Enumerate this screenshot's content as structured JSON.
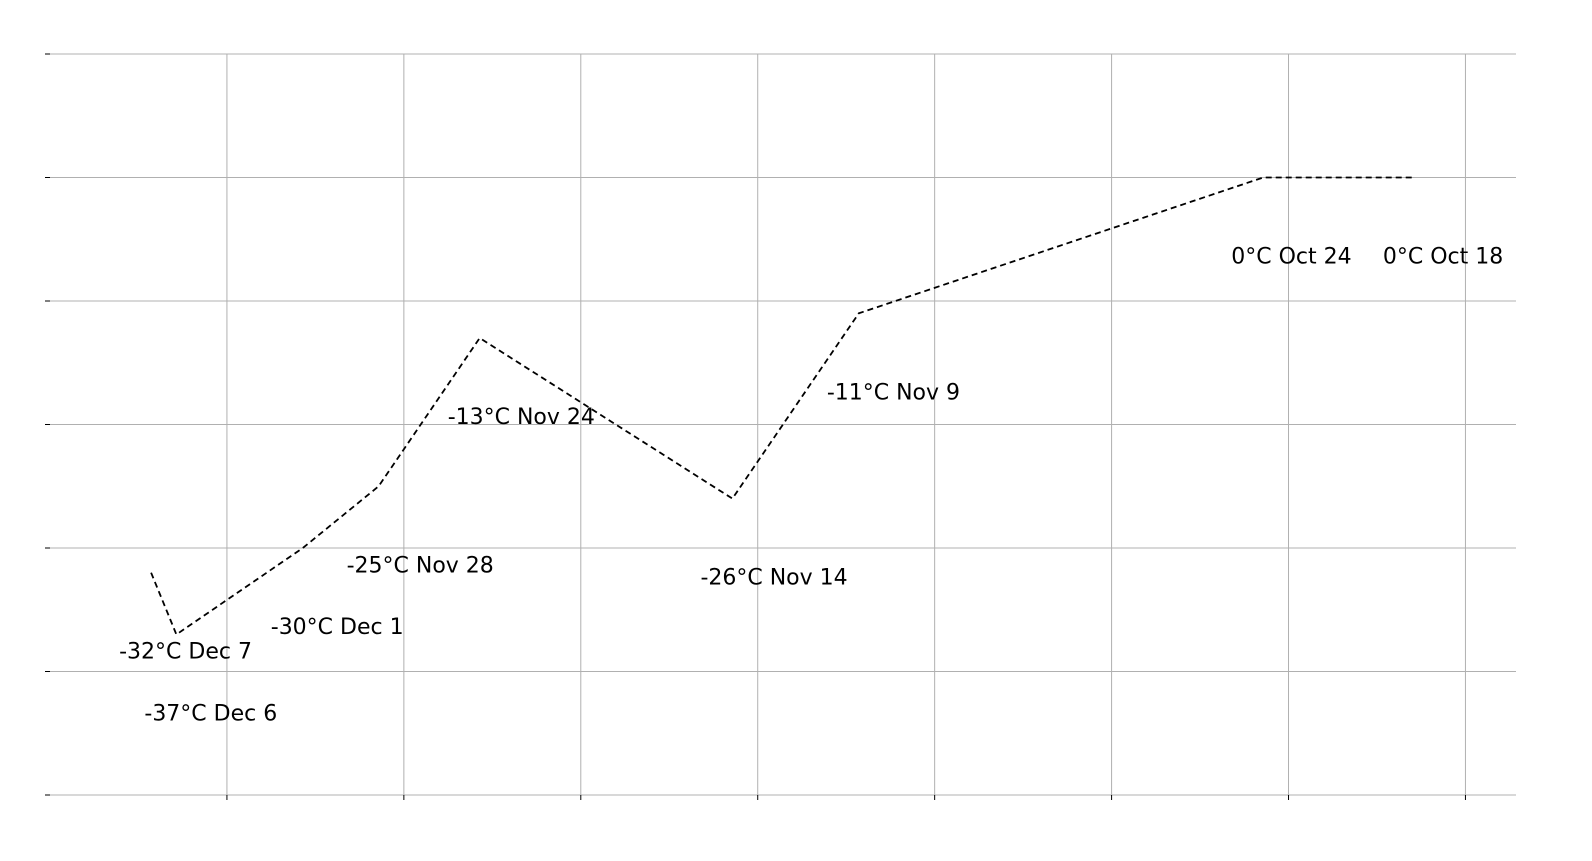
{
  "chart_data": {
    "type": "line",
    "title": "",
    "xlabel": "",
    "ylabel": "",
    "x_direction": "descending dates (Dec 7 on left, Oct 18 on right)",
    "xlim": [
      "2023-12-11",
      "2023-10-14"
    ],
    "ylim": [
      -50,
      10
    ],
    "x_gridlines": [
      "2023-12-04",
      "2023-11-27",
      "2023-11-20",
      "2023-11-13",
      "2023-11-06",
      "2023-10-30",
      "2023-10-23",
      "2023-10-16"
    ],
    "y_gridlines": [
      -50,
      -40,
      -30,
      -20,
      -10,
      0,
      10
    ],
    "grid": true,
    "tick_labels_visible": false,
    "line_style": "dashed",
    "line_color": "#000000",
    "points": [
      {
        "date": "2023-12-07",
        "value": -32,
        "label": "-32°C Dec 7"
      },
      {
        "date": "2023-12-06",
        "value": -37,
        "label": "-37°C Dec 6"
      },
      {
        "date": "2023-12-01",
        "value": -30,
        "label": "-30°C Dec 1"
      },
      {
        "date": "2023-11-28",
        "value": -25,
        "label": "-25°C Nov 28"
      },
      {
        "date": "2023-11-24",
        "value": -13,
        "label": "-13°C Nov 24"
      },
      {
        "date": "2023-11-14",
        "value": -26,
        "label": "-26°C Nov 14"
      },
      {
        "date": "2023-11-09",
        "value": -11,
        "label": "-11°C Nov 9"
      },
      {
        "date": "2023-10-24",
        "value": 0,
        "label": "0°C Oct 24"
      },
      {
        "date": "2023-10-18",
        "value": 0,
        "label": "0°C Oct 18"
      }
    ]
  }
}
